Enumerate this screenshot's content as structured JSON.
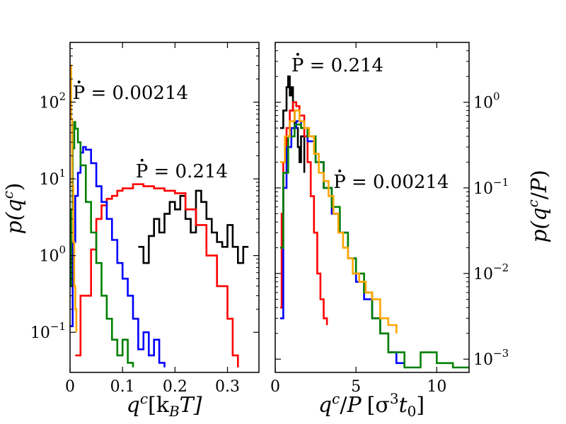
{
  "chart_data": [
    {
      "type": "line",
      "panel": "left",
      "xlabel": "q^c[k_BT]",
      "xlabel_parts": {
        "q": "q",
        "sup": "c",
        "rest": "[k",
        "sub": "B",
        "tail": "T]"
      },
      "ylabel": "p(q^c)",
      "ylabel_parts": {
        "pre": "p(q",
        "sup": "c",
        "post": ")"
      },
      "xscale": "linear",
      "yscale": "log",
      "xlim": [
        0,
        0.36
      ],
      "ylim": [
        0.03,
        600
      ],
      "xticks": [
        0,
        0.1,
        0.2,
        0.3
      ],
      "xtick_labels": [
        "0",
        "0.1",
        "0.2",
        "0.3"
      ],
      "yticks": [
        0.1,
        1,
        10,
        100
      ],
      "ytick_labels": [
        {
          "base": "10",
          "exp": "−1"
        },
        {
          "base": "10",
          "exp": "0"
        },
        {
          "base": "10",
          "exp": "1"
        },
        {
          "base": "10",
          "exp": "2"
        }
      ],
      "annotations": [
        {
          "text": "P = 0.00214",
          "x": 0.005,
          "y": 110
        },
        {
          "text": "P = 0.214",
          "x": 0.125,
          "y": 10.5
        }
      ],
      "series": [
        {
          "name": "black",
          "color": "#000000",
          "points": [
            [
              0.13,
              1.3
            ],
            [
              0.14,
              0.8
            ],
            [
              0.15,
              1.8
            ],
            [
              0.16,
              3
            ],
            [
              0.17,
              2
            ],
            [
              0.18,
              3.5
            ],
            [
              0.19,
              5
            ],
            [
              0.2,
              4
            ],
            [
              0.21,
              6
            ],
            [
              0.22,
              3
            ],
            [
              0.23,
              2
            ],
            [
              0.24,
              7
            ],
            [
              0.25,
              5
            ],
            [
              0.26,
              3
            ],
            [
              0.27,
              2
            ],
            [
              0.28,
              1.5
            ],
            [
              0.29,
              1.3
            ],
            [
              0.3,
              2.5
            ],
            [
              0.31,
              1.3
            ],
            [
              0.32,
              0.8
            ],
            [
              0.33,
              1.3
            ],
            [
              0.34,
              1.3
            ]
          ]
        },
        {
          "name": "red",
          "color": "#ff0000",
          "points": [
            [
              0.01,
              0.05
            ],
            [
              0.02,
              0.3
            ],
            [
              0.03,
              0.3
            ],
            [
              0.04,
              1.2
            ],
            [
              0.05,
              3
            ],
            [
              0.06,
              4.5
            ],
            [
              0.07,
              5.5
            ],
            [
              0.08,
              6
            ],
            [
              0.09,
              7
            ],
            [
              0.1,
              7.5
            ],
            [
              0.12,
              8.5
            ],
            [
              0.14,
              8
            ],
            [
              0.16,
              7.5
            ],
            [
              0.18,
              7
            ],
            [
              0.2,
              6.5
            ],
            [
              0.22,
              4
            ],
            [
              0.24,
              2.5
            ],
            [
              0.26,
              1
            ],
            [
              0.28,
              0.4
            ],
            [
              0.3,
              0.15
            ],
            [
              0.31,
              0.05
            ],
            [
              0.32,
              0.035
            ]
          ]
        },
        {
          "name": "blue",
          "color": "#0000ff",
          "points": [
            [
              0.0,
              0.12
            ],
            [
              0.005,
              1.5
            ],
            [
              0.01,
              6
            ],
            [
              0.015,
              12
            ],
            [
              0.02,
              22
            ],
            [
              0.025,
              26
            ],
            [
              0.03,
              24
            ],
            [
              0.04,
              16
            ],
            [
              0.05,
              8
            ],
            [
              0.06,
              5
            ],
            [
              0.07,
              3
            ],
            [
              0.08,
              1.6
            ],
            [
              0.09,
              0.8
            ],
            [
              0.1,
              0.5
            ],
            [
              0.11,
              0.3
            ],
            [
              0.12,
              0.15
            ],
            [
              0.13,
              0.06
            ],
            [
              0.14,
              0.1
            ],
            [
              0.15,
              0.05
            ],
            [
              0.16,
              0.08
            ],
            [
              0.17,
              0.04
            ],
            [
              0.18,
              0.035
            ]
          ]
        },
        {
          "name": "green",
          "color": "#008000",
          "points": [
            [
              0.0,
              0.4
            ],
            [
              0.002,
              4
            ],
            [
              0.005,
              25
            ],
            [
              0.008,
              55
            ],
            [
              0.01,
              45
            ],
            [
              0.015,
              30
            ],
            [
              0.02,
              15
            ],
            [
              0.03,
              5
            ],
            [
              0.04,
              2
            ],
            [
              0.05,
              0.8
            ],
            [
              0.06,
              0.3
            ],
            [
              0.07,
              0.15
            ],
            [
              0.08,
              0.08
            ],
            [
              0.09,
              0.05
            ],
            [
              0.1,
              0.08
            ],
            [
              0.11,
              0.04
            ],
            [
              0.12,
              0.035
            ]
          ]
        },
        {
          "name": "orange",
          "color": "#ffa500",
          "points": [
            [
              0.0,
              300
            ],
            [
              0.002,
              60
            ],
            [
              0.004,
              8
            ],
            [
              0.006,
              1.5
            ],
            [
              0.008,
              0.4
            ],
            [
              0.01,
              0.2
            ],
            [
              0.012,
              0.1
            ]
          ]
        }
      ]
    },
    {
      "type": "line",
      "panel": "right",
      "xlabel": "q^c/P [σ^3 t_0]",
      "xlabel_parts": {
        "q": "q",
        "sup": "c",
        "mid": "/",
        "P": "P",
        "bracket": "[σ",
        "sup2": "3",
        "t": "t",
        "sub": "0",
        "close": "]"
      },
      "ylabel": "p(q^c/P)",
      "ylabel_parts": {
        "pre": "p(q",
        "sup": "c",
        "mid": "/",
        "P": "P",
        "post": ")"
      },
      "xscale": "linear",
      "yscale": "log",
      "xlim": [
        0,
        12
      ],
      "ylim": [
        0.0007,
        5
      ],
      "xticks": [
        0,
        5,
        10
      ],
      "xtick_labels": [
        "0",
        "5",
        "10"
      ],
      "yticks": [
        0.001,
        0.01,
        0.1,
        1
      ],
      "ytick_labels": [
        {
          "base": "10",
          "exp": "−3"
        },
        {
          "base": "10",
          "exp": "−2"
        },
        {
          "base": "10",
          "exp": "−1"
        },
        {
          "base": "10",
          "exp": "0"
        }
      ],
      "annotations": [
        {
          "text": "P = 0.214",
          "x": 1.0,
          "y": 2.3
        },
        {
          "text": "P = 0.00214",
          "x": 3.6,
          "y": 0.1
        }
      ],
      "series": [
        {
          "name": "black",
          "color": "#000000",
          "points": [
            [
              0.3,
              0.5
            ],
            [
              0.5,
              0.8
            ],
            [
              0.7,
              1.5
            ],
            [
              0.8,
              2
            ],
            [
              0.9,
              1.2
            ],
            [
              1.0,
              1.5
            ],
            [
              1.1,
              0.8
            ],
            [
              1.2,
              0.5
            ],
            [
              1.4,
              0.3
            ],
            [
              1.5,
              0.2
            ],
            [
              1.6,
              0.4
            ],
            [
              1.8,
              0.15
            ]
          ]
        },
        {
          "name": "red",
          "color": "#ff0000",
          "points": [
            [
              0.3,
              0.004
            ],
            [
              0.4,
              0.05
            ],
            [
              0.5,
              0.2
            ],
            [
              0.7,
              0.5
            ],
            [
              0.9,
              0.8
            ],
            [
              1.1,
              1.0
            ],
            [
              1.3,
              0.9
            ],
            [
              1.5,
              0.7
            ],
            [
              1.8,
              0.4
            ],
            [
              2.0,
              0.2
            ],
            [
              2.2,
              0.08
            ],
            [
              2.4,
              0.03
            ],
            [
              2.6,
              0.01
            ],
            [
              2.8,
              0.005
            ],
            [
              3.0,
              0.003
            ],
            [
              3.2,
              0.0025
            ]
          ]
        },
        {
          "name": "blue",
          "color": "#0000ff",
          "points": [
            [
              0.3,
              0.003
            ],
            [
              0.5,
              0.1
            ],
            [
              0.7,
              0.3
            ],
            [
              1.0,
              0.5
            ],
            [
              1.3,
              0.6
            ],
            [
              1.6,
              0.5
            ],
            [
              2.0,
              0.35
            ],
            [
              2.5,
              0.2
            ],
            [
              3.0,
              0.1
            ],
            [
              3.5,
              0.05
            ],
            [
              4.0,
              0.03
            ],
            [
              4.5,
              0.015
            ],
            [
              5.0,
              0.008
            ],
            [
              5.5,
              0.005
            ],
            [
              6.0,
              0.003
            ],
            [
              6.5,
              0.002
            ],
            [
              7.0,
              0.0012
            ],
            [
              7.5,
              0.0009
            ],
            [
              8.0,
              0.0008
            ]
          ]
        },
        {
          "name": "green",
          "color": "#008000",
          "points": [
            [
              0.3,
              0.02
            ],
            [
              0.5,
              0.15
            ],
            [
              0.8,
              0.4
            ],
            [
              1.2,
              0.55
            ],
            [
              1.6,
              0.5
            ],
            [
              2.0,
              0.4
            ],
            [
              2.5,
              0.2
            ],
            [
              3.0,
              0.1
            ],
            [
              3.5,
              0.06
            ],
            [
              4.0,
              0.03
            ],
            [
              4.5,
              0.015
            ],
            [
              5.0,
              0.01
            ],
            [
              5.5,
              0.006
            ],
            [
              6.0,
              0.003
            ],
            [
              6.5,
              0.002
            ],
            [
              7.0,
              0.0012
            ],
            [
              8.0,
              0.0008
            ],
            [
              9.0,
              0.0012
            ],
            [
              10.0,
              0.0009
            ],
            [
              11.0,
              0.0008
            ],
            [
              12.0,
              0.0008
            ]
          ]
        },
        {
          "name": "orange",
          "color": "#ffa500",
          "points": [
            [
              0.3,
              0.2
            ],
            [
              0.6,
              0.4
            ],
            [
              0.9,
              0.6
            ],
            [
              1.2,
              0.8
            ],
            [
              1.5,
              0.6
            ],
            [
              1.8,
              0.5
            ],
            [
              2.1,
              0.4
            ],
            [
              2.4,
              0.25
            ],
            [
              2.7,
              0.15
            ],
            [
              3.0,
              0.12
            ],
            [
              3.3,
              0.08
            ],
            [
              3.6,
              0.05
            ],
            [
              3.9,
              0.03
            ],
            [
              4.2,
              0.02
            ],
            [
              4.5,
              0.015
            ],
            [
              4.8,
              0.01
            ],
            [
              5.2,
              0.008
            ],
            [
              5.6,
              0.006
            ],
            [
              6.0,
              0.005
            ],
            [
              6.5,
              0.003
            ],
            [
              7.0,
              0.0025
            ],
            [
              7.5,
              0.002
            ]
          ]
        }
      ]
    }
  ]
}
